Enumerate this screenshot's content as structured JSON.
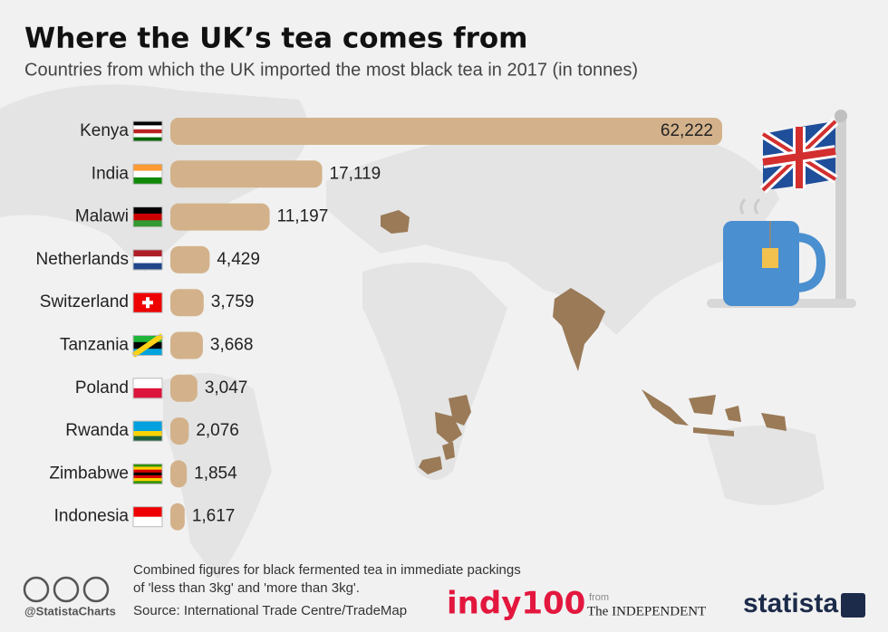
{
  "chart_data": {
    "type": "bar",
    "orientation": "horizontal",
    "title": "Where the UK’s tea comes from",
    "subtitle": "Countries from which the UK imported the most black tea in 2017 (in tonnes)",
    "categories": [
      "Kenya",
      "India",
      "Malawi",
      "Netherlands",
      "Switzerland",
      "Tanzania",
      "Poland",
      "Rwanda",
      "Zimbabwe",
      "Indonesia"
    ],
    "values": [
      62222,
      17119,
      11197,
      4429,
      3759,
      3668,
      3047,
      2076,
      1854,
      1617
    ],
    "value_labels": [
      "62,222",
      "17,119",
      "11,197",
      "4,429",
      "3,759",
      "3,668",
      "3,047",
      "2,076",
      "1,854",
      "1,617"
    ],
    "color": "#d3b28b",
    "note": [
      "Combined figures for black fermented tea in immediate packings",
      "of 'less than 3kg' and 'more than 3kg'."
    ],
    "source": "Source: International Trade Centre/TradeMap",
    "credit": "@StatistaCharts",
    "logos": {
      "indy": "indy100",
      "from": "from",
      "independent": "The INDEPENDENT",
      "statista": "statista"
    }
  }
}
